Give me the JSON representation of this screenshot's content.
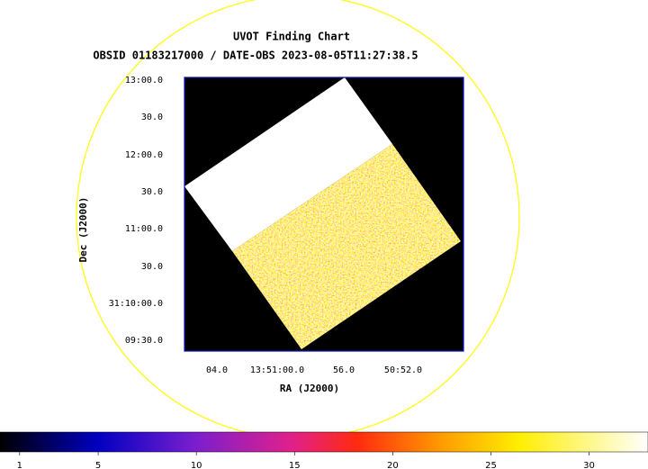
{
  "chart_data": {
    "type": "image",
    "title": "UVOT Finding Chart",
    "subtitle": "OBSID 01183217000 / DATE-OBS 2023-08-05T11:27:38.5",
    "xlabel": "RA (J2000)",
    "ylabel": "Dec (J2000)",
    "x_tick_labels": [
      "04.0",
      "13:51:00.0",
      "56.0",
      "50:52.0"
    ],
    "y_tick_labels": [
      "13:00.0",
      "30.0",
      "12:00.0",
      "30.0",
      "11:00.0",
      "30.0",
      "31:10:00.0",
      "09:30.0"
    ],
    "colorbar": {
      "clim": [
        0,
        33
      ],
      "ticks": [
        1,
        5,
        10,
        15,
        20,
        25,
        30
      ]
    }
  }
}
